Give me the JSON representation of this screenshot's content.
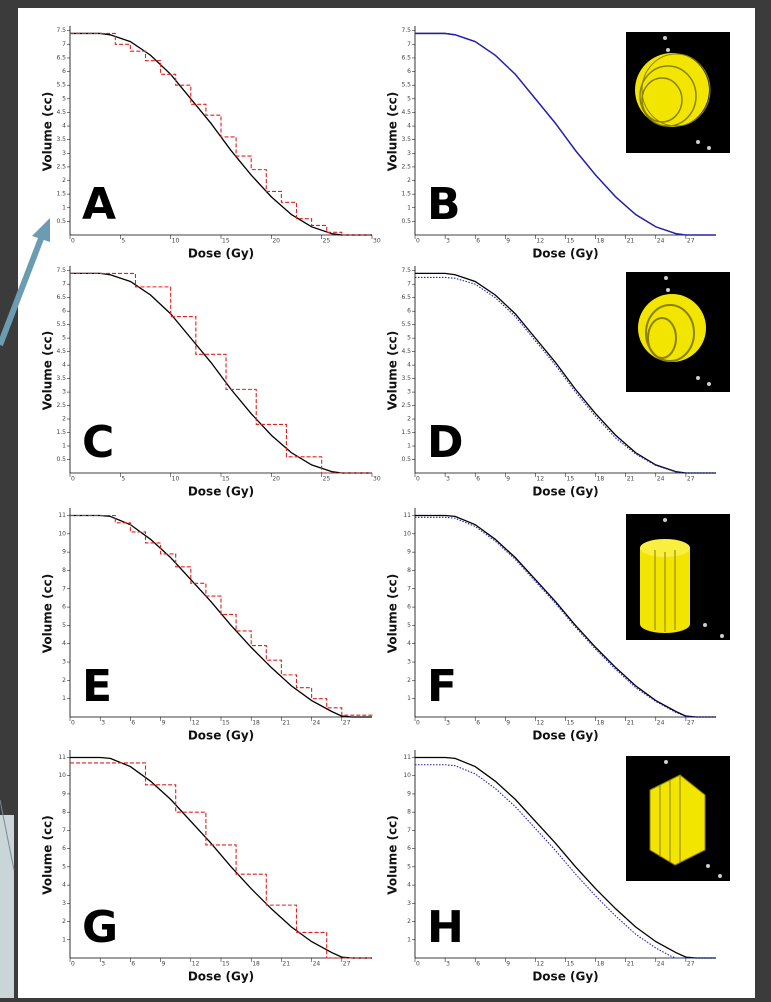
{
  "chart_data": [
    {
      "type": "line",
      "label": "A",
      "x_label": "Dose (Gy)",
      "y_label": "Volume (cc)",
      "xlim": [
        0,
        30
      ],
      "ylim": [
        0,
        7.6
      ],
      "xticks": [
        0,
        5,
        10,
        15,
        20,
        25,
        30
      ],
      "yticks": [
        0.5,
        1,
        1.5,
        2,
        2.5,
        3,
        3.5,
        4,
        4.5,
        5,
        5.5,
        6,
        6.5,
        7,
        7.5
      ],
      "series": [
        {
          "color": "#000000",
          "dash": "solid",
          "step": false,
          "x": [
            0,
            3,
            4,
            6,
            8,
            10,
            12,
            14,
            16,
            18,
            20,
            22,
            24,
            26,
            27,
            30
          ],
          "values": [
            7.4,
            7.4,
            7.35,
            7.1,
            6.6,
            5.9,
            5.0,
            4.1,
            3.1,
            2.2,
            1.4,
            0.75,
            0.3,
            0.05,
            0,
            0
          ]
        },
        {
          "color": "#e02020",
          "dash": "dashed",
          "step": true,
          "x": [
            0,
            4.5,
            6,
            7.5,
            9,
            10.5,
            12,
            13.5,
            15,
            16.5,
            18,
            19.5,
            21,
            22.5,
            24,
            25.5,
            27,
            30
          ],
          "values": [
            7.4,
            7.0,
            6.75,
            6.4,
            5.9,
            5.5,
            4.8,
            4.4,
            3.6,
            2.9,
            2.4,
            1.6,
            1.2,
            0.6,
            0.35,
            0.1,
            0,
            0
          ]
        }
      ]
    },
    {
      "type": "line",
      "label": "B",
      "x_label": "Dose (Gy)",
      "y_label": "Volume (cc)",
      "xlim": [
        0,
        30
      ],
      "ylim": [
        0,
        7.6
      ],
      "xticks": [
        0,
        3,
        6,
        9,
        12,
        15,
        18,
        21,
        24,
        27
      ],
      "yticks": [
        0.5,
        1,
        1.5,
        2,
        2.5,
        3,
        3.5,
        4,
        4.5,
        5,
        5.5,
        6,
        6.5,
        7,
        7.5
      ],
      "series": [
        {
          "color": "#000000",
          "dash": "solid",
          "step": false,
          "x": [
            0,
            3,
            4,
            6,
            8,
            10,
            12,
            14,
            16,
            18,
            20,
            22,
            24,
            26,
            27,
            30
          ],
          "values": [
            7.4,
            7.4,
            7.35,
            7.1,
            6.6,
            5.9,
            5.0,
            4.1,
            3.1,
            2.2,
            1.4,
            0.75,
            0.3,
            0.05,
            0,
            0
          ]
        },
        {
          "color": "#2020c0",
          "dash": "solid",
          "step": false,
          "x": [
            0,
            3,
            4,
            6,
            8,
            10,
            12,
            14,
            16,
            18,
            20,
            22,
            24,
            26,
            27,
            30
          ],
          "values": [
            7.4,
            7.4,
            7.35,
            7.1,
            6.6,
            5.9,
            5.0,
            4.1,
            3.1,
            2.2,
            1.4,
            0.75,
            0.3,
            0.05,
            0,
            0
          ]
        }
      ]
    },
    {
      "type": "line",
      "label": "C",
      "x_label": "Dose (Gy)",
      "y_label": "Volume (cc)",
      "xlim": [
        0,
        30
      ],
      "ylim": [
        0,
        7.6
      ],
      "xticks": [
        0,
        5,
        10,
        15,
        20,
        25,
        30
      ],
      "yticks": [
        0.5,
        1,
        1.5,
        2,
        2.5,
        3,
        3.5,
        4,
        4.5,
        5,
        5.5,
        6,
        6.5,
        7,
        7.5
      ],
      "series": [
        {
          "color": "#000000",
          "dash": "solid",
          "step": false,
          "x": [
            0,
            3,
            4,
            6,
            8,
            10,
            12,
            14,
            16,
            18,
            20,
            22,
            24,
            26,
            27,
            30
          ],
          "values": [
            7.4,
            7.4,
            7.35,
            7.1,
            6.6,
            5.9,
            5.0,
            4.1,
            3.1,
            2.2,
            1.4,
            0.75,
            0.3,
            0.05,
            0,
            0
          ]
        },
        {
          "color": "#e02020",
          "dash": "dashed",
          "step": true,
          "x": [
            0,
            6.5,
            10,
            12.5,
            15.5,
            18.5,
            21.5,
            25,
            30
          ],
          "values": [
            7.4,
            6.9,
            5.8,
            4.4,
            3.1,
            1.8,
            0.6,
            0,
            0
          ]
        }
      ]
    },
    {
      "type": "line",
      "label": "D",
      "x_label": "Dose (Gy)",
      "y_label": "Volume (cc)",
      "xlim": [
        0,
        30
      ],
      "ylim": [
        0,
        7.6
      ],
      "xticks": [
        0,
        3,
        6,
        9,
        12,
        15,
        18,
        21,
        24,
        27
      ],
      "yticks": [
        0.5,
        1,
        1.5,
        2,
        2.5,
        3,
        3.5,
        4,
        4.5,
        5,
        5.5,
        6,
        6.5,
        7,
        7.5
      ],
      "series": [
        {
          "color": "#000000",
          "dash": "solid",
          "step": false,
          "x": [
            0,
            3,
            4,
            6,
            8,
            10,
            12,
            14,
            16,
            18,
            20,
            22,
            24,
            26,
            27,
            30
          ],
          "values": [
            7.4,
            7.4,
            7.35,
            7.1,
            6.6,
            5.9,
            5.0,
            4.1,
            3.1,
            2.2,
            1.4,
            0.75,
            0.3,
            0.05,
            0,
            0
          ]
        },
        {
          "color": "#2020c0",
          "dash": "dotted",
          "step": false,
          "x": [
            0,
            3,
            4,
            6,
            8,
            10,
            12,
            14,
            16,
            18,
            20,
            22,
            24,
            26,
            27,
            30
          ],
          "values": [
            7.25,
            7.25,
            7.22,
            7.0,
            6.5,
            5.8,
            4.9,
            4.0,
            3.0,
            2.1,
            1.3,
            0.7,
            0.28,
            0.04,
            0,
            0
          ]
        }
      ]
    },
    {
      "type": "line",
      "label": "E",
      "x_label": "Dose (Gy)",
      "y_label": "Volume (cc)",
      "xlim": [
        0,
        30
      ],
      "ylim": [
        0,
        11.3
      ],
      "xticks": [
        0,
        3,
        6,
        9,
        12,
        15,
        18,
        21,
        24,
        27
      ],
      "yticks": [
        1,
        2,
        3,
        4,
        5,
        6,
        7,
        8,
        9,
        10,
        11
      ],
      "series": [
        {
          "color": "#000000",
          "dash": "solid",
          "step": false,
          "x": [
            0,
            3,
            4,
            6,
            8,
            10,
            12,
            14,
            16,
            18,
            20,
            22,
            24,
            26,
            27,
            28,
            30
          ],
          "values": [
            11,
            11,
            10.95,
            10.5,
            9.7,
            8.7,
            7.5,
            6.3,
            5.0,
            3.8,
            2.7,
            1.7,
            0.9,
            0.3,
            0.05,
            0,
            0
          ]
        },
        {
          "color": "#e02020",
          "dash": "dashed",
          "step": true,
          "x": [
            0,
            4.5,
            6,
            7.5,
            9,
            10.5,
            12,
            13.5,
            15,
            16.5,
            18,
            19.5,
            21,
            22.5,
            24,
            25.5,
            27,
            30
          ],
          "values": [
            11,
            10.6,
            10.1,
            9.5,
            8.9,
            8.2,
            7.3,
            6.6,
            5.6,
            4.7,
            3.9,
            3.1,
            2.3,
            1.6,
            1.0,
            0.5,
            0.1,
            0
          ]
        }
      ]
    },
    {
      "type": "line",
      "label": "F",
      "x_label": "Dose (Gy)",
      "y_label": "Volume (cc)",
      "xlim": [
        0,
        30
      ],
      "ylim": [
        0,
        11.3
      ],
      "xticks": [
        0,
        3,
        6,
        9,
        12,
        15,
        18,
        21,
        24,
        27
      ],
      "yticks": [
        1,
        2,
        3,
        4,
        5,
        6,
        7,
        8,
        9,
        10,
        11
      ],
      "series": [
        {
          "color": "#000000",
          "dash": "solid",
          "step": false,
          "x": [
            0,
            3,
            4,
            6,
            8,
            10,
            12,
            14,
            16,
            18,
            20,
            22,
            24,
            26,
            27,
            28,
            30
          ],
          "values": [
            11,
            11,
            10.95,
            10.5,
            9.7,
            8.7,
            7.5,
            6.3,
            5.0,
            3.8,
            2.7,
            1.7,
            0.9,
            0.3,
            0.05,
            0,
            0
          ]
        },
        {
          "color": "#2020c0",
          "dash": "dotted",
          "step": false,
          "x": [
            0,
            3,
            4,
            6,
            8,
            10,
            12,
            14,
            16,
            18,
            20,
            22,
            24,
            26,
            27,
            28,
            30
          ],
          "values": [
            10.9,
            10.9,
            10.85,
            10.4,
            9.6,
            8.6,
            7.4,
            6.2,
            4.9,
            3.7,
            2.6,
            1.6,
            0.85,
            0.25,
            0.03,
            0,
            0
          ]
        }
      ]
    },
    {
      "type": "line",
      "label": "G",
      "x_label": "Dose (Gy)",
      "y_label": "Volume (cc)",
      "xlim": [
        0,
        30
      ],
      "ylim": [
        0,
        11.3
      ],
      "xticks": [
        0,
        3,
        6,
        9,
        12,
        15,
        18,
        21,
        24,
        27
      ],
      "yticks": [
        1,
        2,
        3,
        4,
        5,
        6,
        7,
        8,
        9,
        10,
        11
      ],
      "series": [
        {
          "color": "#000000",
          "dash": "solid",
          "step": false,
          "x": [
            0,
            3,
            4,
            6,
            8,
            10,
            12,
            14,
            16,
            18,
            20,
            22,
            24,
            26,
            27,
            28,
            30
          ],
          "values": [
            11,
            11,
            10.95,
            10.5,
            9.7,
            8.7,
            7.5,
            6.3,
            5.0,
            3.8,
            2.7,
            1.7,
            0.9,
            0.3,
            0.05,
            0,
            0
          ]
        },
        {
          "color": "#e02020",
          "dash": "dashed",
          "step": true,
          "x": [
            0,
            6.5,
            7.5,
            10.5,
            13.5,
            16.5,
            19.5,
            22.5,
            25.5,
            30
          ],
          "values": [
            10.7,
            10.7,
            9.5,
            8.0,
            6.2,
            4.6,
            2.9,
            1.4,
            0,
            0
          ]
        }
      ]
    },
    {
      "type": "line",
      "label": "H",
      "x_label": "Dose (Gy)",
      "y_label": "Volume (cc)",
      "xlim": [
        0,
        30
      ],
      "ylim": [
        0,
        11.3
      ],
      "xticks": [
        0,
        3,
        6,
        9,
        12,
        15,
        18,
        21,
        24,
        27
      ],
      "yticks": [
        1,
        2,
        3,
        4,
        5,
        6,
        7,
        8,
        9,
        10,
        11
      ],
      "series": [
        {
          "color": "#000000",
          "dash": "solid",
          "step": false,
          "x": [
            0,
            3,
            4,
            6,
            8,
            10,
            12,
            14,
            16,
            18,
            20,
            22,
            24,
            26,
            27,
            28,
            30
          ],
          "values": [
            11,
            11,
            10.95,
            10.5,
            9.7,
            8.7,
            7.5,
            6.3,
            5.0,
            3.8,
            2.7,
            1.7,
            0.9,
            0.3,
            0.05,
            0,
            0
          ]
        },
        {
          "color": "#2020c0",
          "dash": "dotted",
          "step": false,
          "x": [
            0,
            3,
            4,
            6,
            8,
            10,
            12,
            14,
            16,
            18,
            20,
            22,
            24,
            25.5,
            26,
            30
          ],
          "values": [
            10.6,
            10.6,
            10.55,
            10.1,
            9.3,
            8.3,
            7.1,
            5.9,
            4.6,
            3.4,
            2.3,
            1.3,
            0.55,
            0.1,
            0,
            0
          ]
        }
      ]
    }
  ]
}
